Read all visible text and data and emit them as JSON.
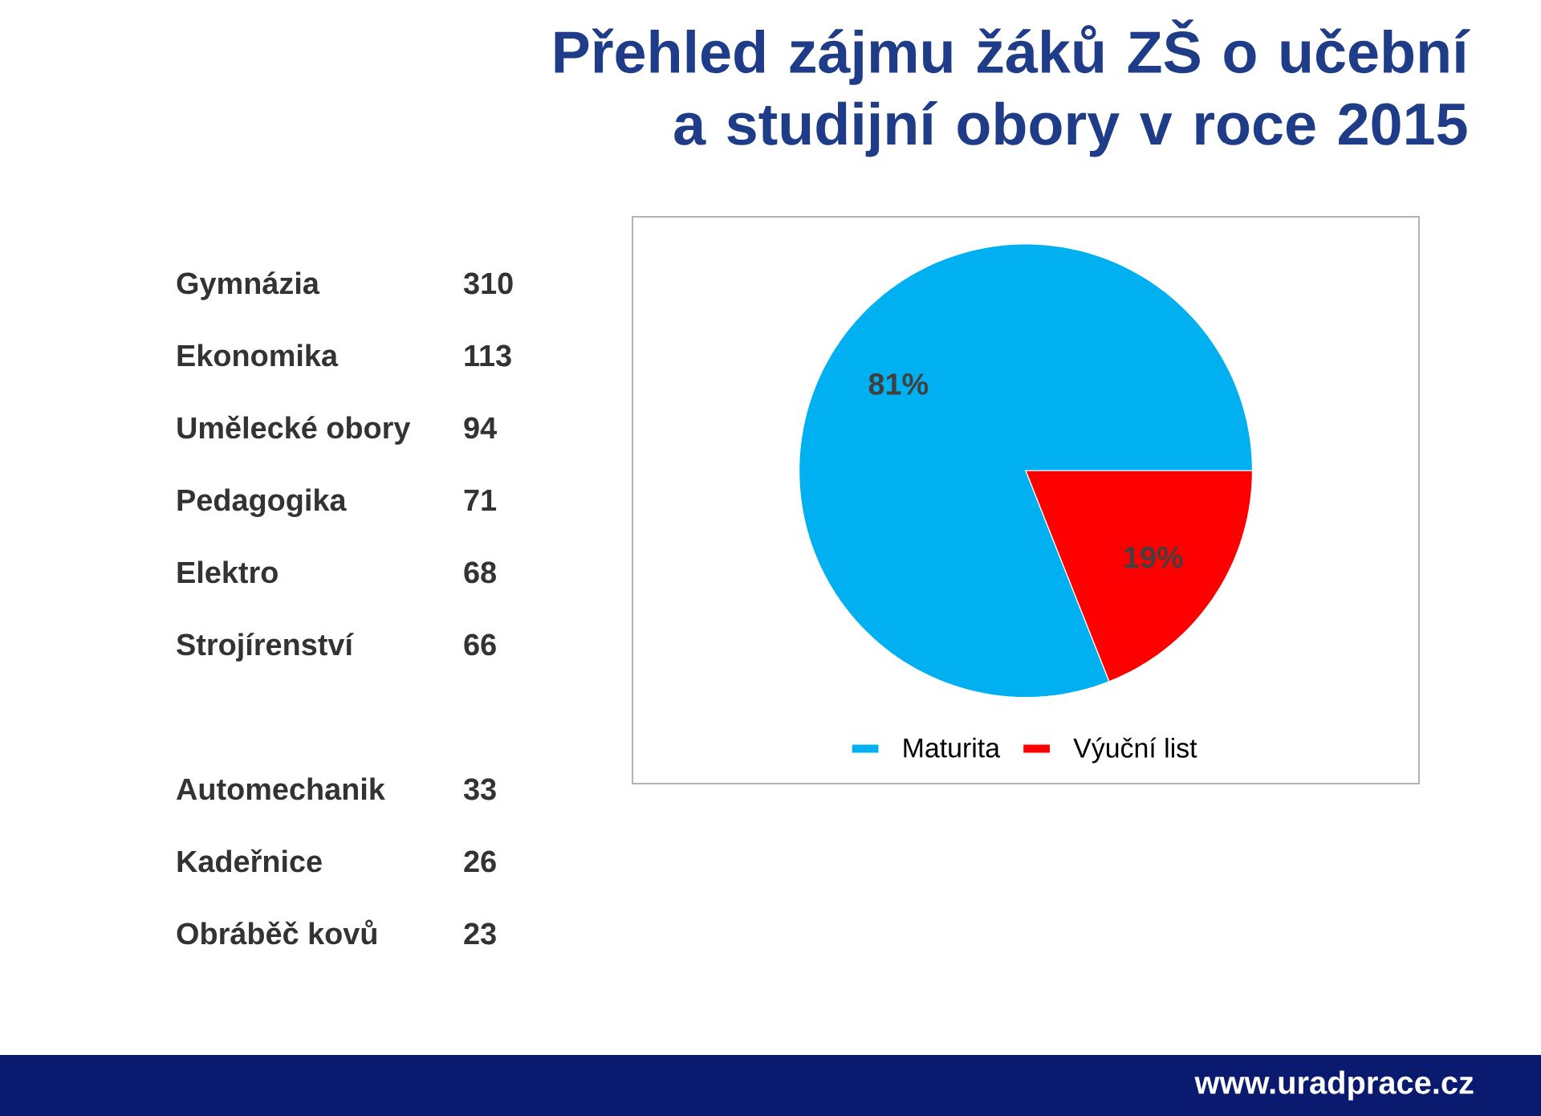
{
  "chart_data": [
    {
      "type": "other",
      "title": "Přehled zájmu žáků ZŠ o učební a studijní obory v roce 2015",
      "categories": [
        "Gymnázia",
        "Ekonomika",
        "Umělecké obory",
        "Pedagogika",
        "Elektro",
        "Strojírenství",
        "Automechanik",
        "Kadeřnice",
        "Obráběč kovů"
      ],
      "value_labels": [
        "310",
        "113",
        "94",
        "71",
        "68",
        "66",
        "33",
        "26",
        "23"
      ],
      "annotations": [
        "www.uradprace.cz"
      ]
    },
    {
      "type": "pie",
      "categories": [
        "Maturita",
        "Výuční list"
      ],
      "values": [
        81,
        19
      ],
      "colors": [
        "#00b0f0",
        "#ff0000"
      ],
      "value_labels": [
        "81%",
        "19%"
      ],
      "legend": "bottom"
    }
  ]
}
